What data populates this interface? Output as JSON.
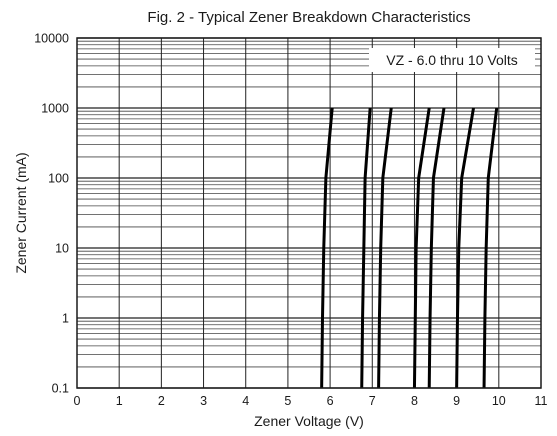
{
  "chart_data": {
    "type": "line",
    "title": "Fig. 2 - Typical Zener Breakdown Characteristics",
    "xlabel": "Zener Voltage (V)",
    "ylabel": "Zener Current (mA)",
    "xlim": [
      0,
      11
    ],
    "ylim": [
      0.1,
      10000
    ],
    "yscale": "log",
    "grid": true,
    "x_ticks": [
      "0",
      "1",
      "2",
      "3",
      "4",
      "5",
      "6",
      "7",
      "8",
      "9",
      "10",
      "11"
    ],
    "y_ticks": [
      "0.1",
      "1",
      "10",
      "100",
      "1000",
      "10000"
    ],
    "annotation": "VZ - 6.0 thru 10 Volts",
    "series": [
      {
        "points": [
          [
            5.8,
            0.1
          ],
          [
            5.82,
            1
          ],
          [
            5.85,
            10
          ],
          [
            5.9,
            100
          ],
          [
            6.05,
            1000
          ]
        ]
      },
      {
        "points": [
          [
            6.75,
            0.1
          ],
          [
            6.77,
            1
          ],
          [
            6.8,
            10
          ],
          [
            6.83,
            100
          ],
          [
            6.95,
            1000
          ]
        ]
      },
      {
        "points": [
          [
            7.15,
            0.1
          ],
          [
            7.17,
            1
          ],
          [
            7.2,
            10
          ],
          [
            7.25,
            100
          ],
          [
            7.45,
            1000
          ]
        ]
      },
      {
        "points": [
          [
            8.0,
            0.1
          ],
          [
            8.02,
            1
          ],
          [
            8.04,
            10
          ],
          [
            8.1,
            100
          ],
          [
            8.35,
            1000
          ]
        ]
      },
      {
        "points": [
          [
            8.35,
            0.1
          ],
          [
            8.37,
            1
          ],
          [
            8.4,
            10
          ],
          [
            8.45,
            100
          ],
          [
            8.7,
            1000
          ]
        ]
      },
      {
        "points": [
          [
            9.0,
            0.1
          ],
          [
            9.02,
            1
          ],
          [
            9.05,
            10
          ],
          [
            9.12,
            100
          ],
          [
            9.4,
            1000
          ]
        ]
      },
      {
        "points": [
          [
            9.65,
            0.1
          ],
          [
            9.67,
            1
          ],
          [
            9.7,
            10
          ],
          [
            9.75,
            100
          ],
          [
            9.95,
            1000
          ]
        ]
      }
    ]
  }
}
